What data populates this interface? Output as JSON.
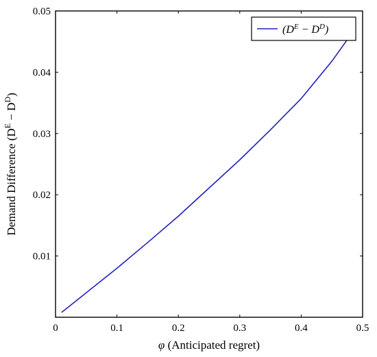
{
  "chart_data": {
    "type": "line",
    "title": "",
    "xlabel": {
      "symbol": "φ",
      "text": " (Anticipated regret)"
    },
    "ylabel": {
      "text": "Demand Difference (D",
      "sup1": "E",
      "mid": " − D",
      "sup2": "D",
      "close": ")"
    },
    "xlim": [
      0,
      0.5
    ],
    "ylim": [
      0,
      0.05
    ],
    "xticks": [
      0,
      0.1,
      0.2,
      0.3,
      0.4,
      0.5
    ],
    "xtick_labels": [
      "0",
      "0.1",
      "0.2",
      "0.3",
      "0.4",
      "0.5"
    ],
    "yticks": [
      0.01,
      0.02,
      0.03,
      0.04,
      0.05
    ],
    "ytick_labels": [
      "0.01",
      "0.02",
      "0.03",
      "0.04",
      "0.05"
    ],
    "grid": false,
    "legend": {
      "position": "top-right"
    },
    "series": [
      {
        "name": "(D^E − D^D)",
        "legend": {
          "open": "(D",
          "sup1": "E",
          "mid": " − D",
          "sup2": "D",
          "close": ")"
        },
        "color": "#1f1fbf",
        "x": [
          0.01,
          0.05,
          0.1,
          0.15,
          0.2,
          0.25,
          0.3,
          0.35,
          0.4,
          0.45,
          0.48
        ],
        "y": [
          0.0008,
          0.004,
          0.008,
          0.0122,
          0.0165,
          0.0211,
          0.0257,
          0.0306,
          0.0357,
          0.0418,
          0.046
        ]
      }
    ]
  }
}
